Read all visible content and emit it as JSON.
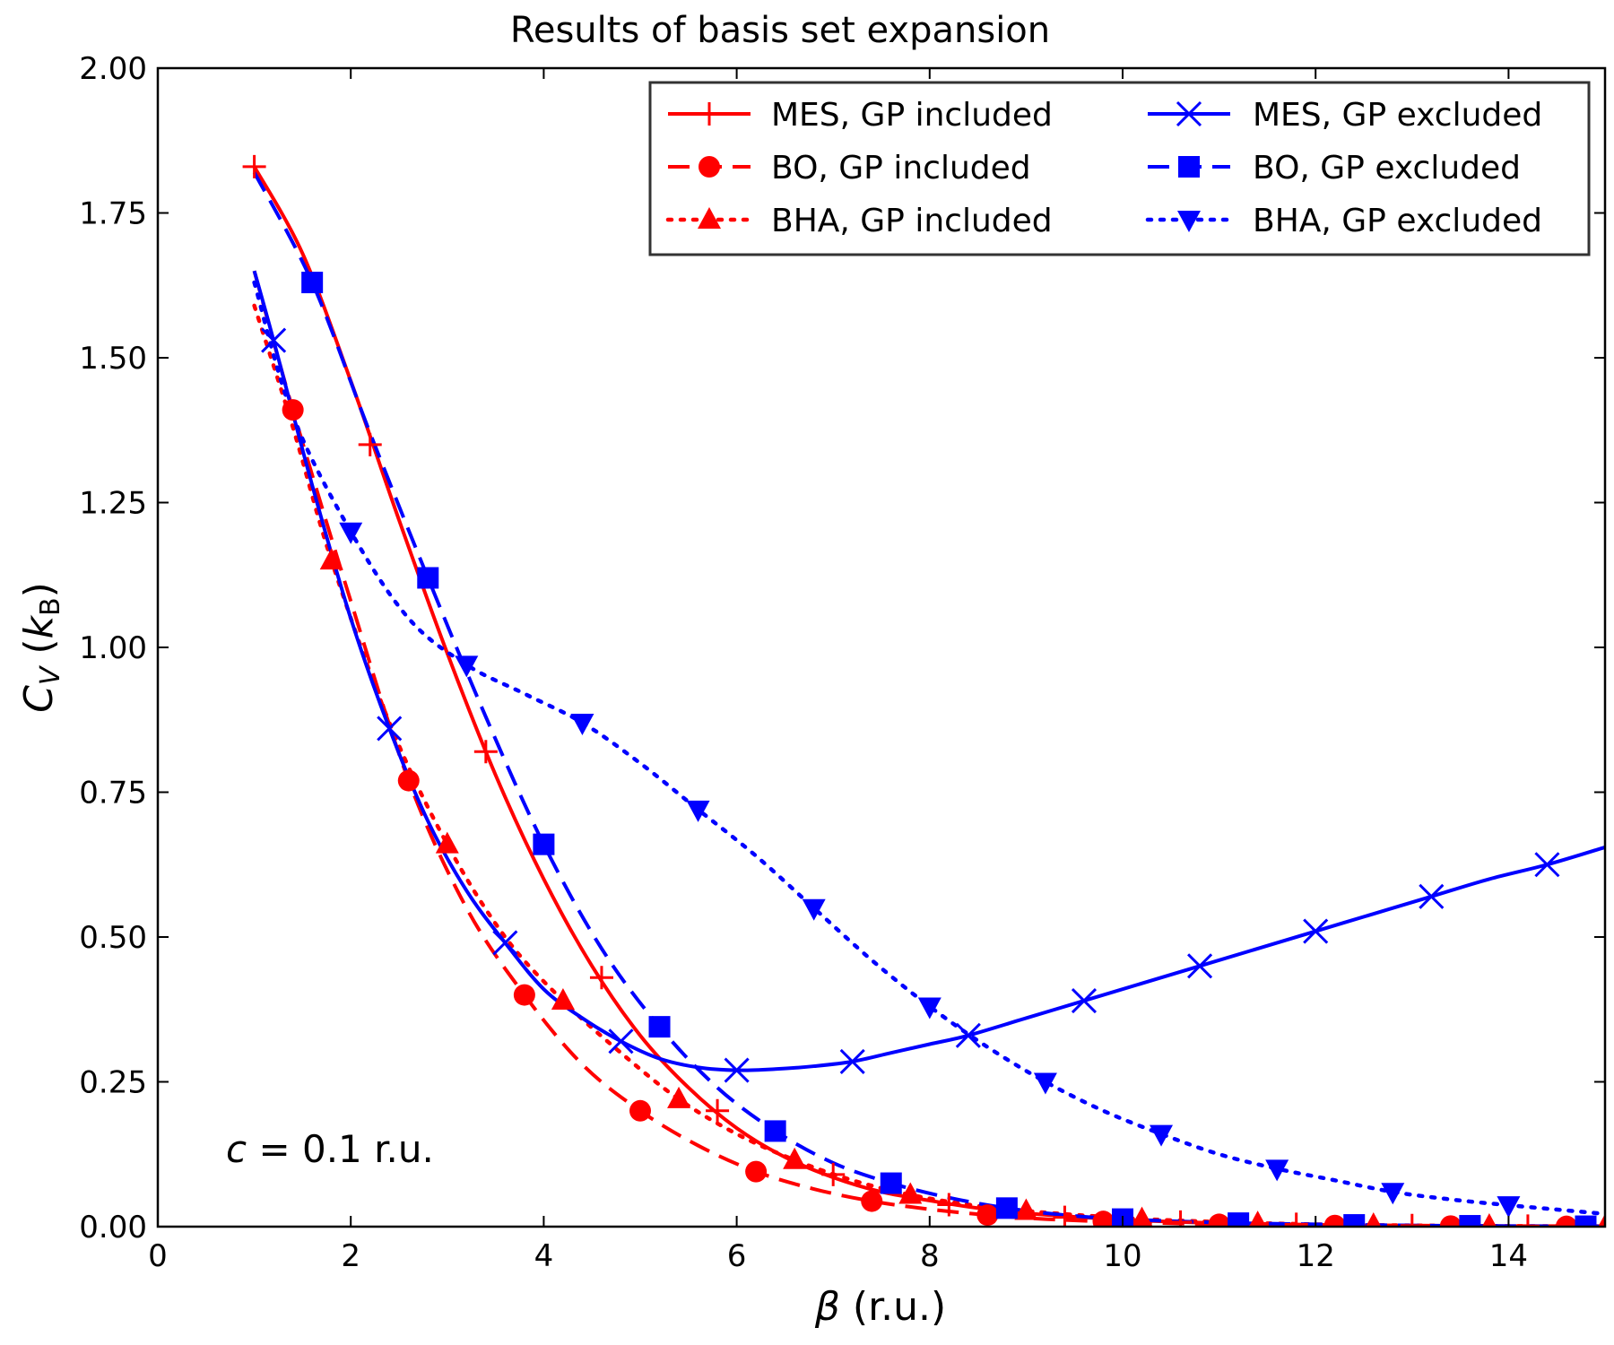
{
  "chart_data": {
    "type": "line",
    "title": "Results of basis set expansion",
    "xlabel": {
      "symbol": "β",
      "unit": " (r.u.)"
    },
    "ylabel": {
      "symbol": "C",
      "sub": "V",
      "open": " (",
      "k": "k",
      "ksub": "B",
      "close": ")"
    },
    "xlim": [
      0,
      15
    ],
    "ylim": [
      0,
      2
    ],
    "xticks": [
      0,
      2,
      4,
      6,
      8,
      10,
      12,
      14
    ],
    "yticks": [
      0,
      0.25,
      0.5,
      0.75,
      1.0,
      1.25,
      1.5,
      1.75,
      2.0
    ],
    "grid": false,
    "legend_position": "top-right",
    "annotation": {
      "c": "c",
      "rest": " = 0.1 r.u."
    },
    "colors": {
      "red": "#ff0000",
      "blue": "#0000ff"
    },
    "series": [
      {
        "name": "MES, GP included",
        "color": "#ff0000",
        "linestyle": "solid",
        "marker": "plus",
        "x": [
          1.0,
          1.5,
          2.0,
          2.5,
          3.0,
          3.5,
          4.0,
          4.5,
          5.0,
          5.5,
          6.0,
          6.5,
          7.0,
          7.5,
          8.0,
          8.5,
          9.0,
          10.0,
          11.0,
          12.0,
          13.0,
          14.0,
          15.0
        ],
        "y": [
          1.83,
          1.68,
          1.46,
          1.22,
          0.99,
          0.78,
          0.6,
          0.45,
          0.33,
          0.24,
          0.17,
          0.12,
          0.085,
          0.06,
          0.045,
          0.032,
          0.023,
          0.012,
          0.006,
          0.003,
          0.002,
          0.001,
          0.001
        ],
        "marker_x": [
          1.0,
          2.2,
          3.4,
          4.6,
          5.8,
          7.0,
          8.2,
          9.4,
          10.6,
          11.8,
          13.0,
          14.2
        ],
        "marker_y": [
          1.83,
          1.35,
          0.82,
          0.43,
          0.2,
          0.09,
          0.038,
          0.016,
          0.008,
          0.004,
          0.002,
          0.001
        ]
      },
      {
        "name": "BO, GP included",
        "color": "#ff0000",
        "linestyle": "dashed",
        "marker": "circle",
        "x": [
          1.0,
          1.4,
          2.0,
          2.6,
          3.2,
          3.8,
          4.4,
          5.0,
          5.6,
          6.2,
          6.8,
          7.4,
          8.0,
          8.6,
          9.2,
          10.0,
          11.0,
          12.0,
          13.0,
          14.0,
          15.0
        ],
        "y": [
          1.65,
          1.41,
          1.08,
          0.77,
          0.55,
          0.4,
          0.28,
          0.2,
          0.14,
          0.095,
          0.065,
          0.044,
          0.03,
          0.02,
          0.013,
          0.008,
          0.004,
          0.002,
          0.001,
          0.0005,
          0.0003
        ],
        "marker_x": [
          1.4,
          2.6,
          3.8,
          5.0,
          6.2,
          7.4,
          8.6,
          9.8,
          11.0,
          12.2,
          13.4,
          14.6
        ],
        "marker_y": [
          1.41,
          0.77,
          0.4,
          0.2,
          0.095,
          0.044,
          0.02,
          0.009,
          0.004,
          0.002,
          0.001,
          0.0005
        ]
      },
      {
        "name": "BHA, GP included",
        "color": "#ff0000",
        "linestyle": "dotted",
        "marker": "triangle-up",
        "x": [
          1.0,
          1.4,
          1.8,
          2.4,
          3.0,
          3.6,
          4.2,
          4.8,
          5.4,
          6.0,
          6.6,
          7.2,
          7.8,
          8.4,
          9.0,
          10.0,
          11.0,
          12.0,
          13.0,
          14.0,
          15.0
        ],
        "y": [
          1.59,
          1.38,
          1.15,
          0.87,
          0.66,
          0.5,
          0.39,
          0.3,
          0.22,
          0.16,
          0.115,
          0.08,
          0.055,
          0.038,
          0.027,
          0.015,
          0.008,
          0.004,
          0.002,
          0.001,
          0.0005
        ],
        "marker_x": [
          1.8,
          3.0,
          4.2,
          5.4,
          6.6,
          7.8,
          9.0,
          10.2,
          11.4,
          12.6,
          13.8,
          15.0
        ],
        "marker_y": [
          1.15,
          0.66,
          0.39,
          0.22,
          0.115,
          0.055,
          0.027,
          0.013,
          0.006,
          0.003,
          0.0015,
          0.0005
        ]
      },
      {
        "name": "MES, GP excluded",
        "color": "#0000ff",
        "linestyle": "solid",
        "marker": "x",
        "x": [
          1.0,
          1.2,
          1.6,
          2.0,
          2.4,
          2.8,
          3.2,
          3.6,
          4.0,
          4.4,
          4.8,
          5.2,
          5.6,
          6.0,
          6.4,
          6.8,
          7.2,
          7.6,
          8.0,
          8.4,
          9.0,
          9.6,
          10.2,
          10.8,
          11.4,
          12.0,
          12.6,
          13.2,
          13.8,
          14.4,
          15.0
        ],
        "y": [
          1.65,
          1.53,
          1.28,
          1.05,
          0.86,
          0.7,
          0.58,
          0.49,
          0.41,
          0.36,
          0.32,
          0.29,
          0.275,
          0.27,
          0.272,
          0.277,
          0.285,
          0.3,
          0.315,
          0.33,
          0.36,
          0.39,
          0.42,
          0.45,
          0.48,
          0.51,
          0.54,
          0.57,
          0.6,
          0.625,
          0.655
        ],
        "marker_x": [
          1.2,
          2.4,
          3.6,
          4.8,
          6.0,
          7.2,
          8.4,
          9.6,
          10.8,
          12.0,
          13.2,
          14.4
        ],
        "marker_y": [
          1.53,
          0.86,
          0.49,
          0.32,
          0.27,
          0.285,
          0.33,
          0.39,
          0.45,
          0.51,
          0.57,
          0.625
        ]
      },
      {
        "name": "BO, GP excluded",
        "color": "#0000ff",
        "linestyle": "dashed",
        "marker": "square",
        "x": [
          1.0,
          1.6,
          2.2,
          2.8,
          3.4,
          4.0,
          4.6,
          5.2,
          5.8,
          6.4,
          7.0,
          7.6,
          8.2,
          8.8,
          9.4,
          10.0,
          11.0,
          12.0,
          13.0,
          14.0,
          15.0
        ],
        "y": [
          1.82,
          1.63,
          1.37,
          1.12,
          0.88,
          0.66,
          0.48,
          0.345,
          0.24,
          0.165,
          0.11,
          0.075,
          0.05,
          0.032,
          0.02,
          0.013,
          0.007,
          0.004,
          0.002,
          0.001,
          0.0006
        ],
        "marker_x": [
          1.6,
          2.8,
          4.0,
          5.2,
          6.4,
          7.6,
          8.8,
          10.0,
          11.2,
          12.4,
          13.6,
          14.8
        ],
        "marker_y": [
          1.63,
          1.12,
          0.66,
          0.345,
          0.165,
          0.075,
          0.032,
          0.013,
          0.006,
          0.003,
          0.0015,
          0.0007
        ]
      },
      {
        "name": "BHA, GP excluded",
        "color": "#0000ff",
        "linestyle": "dotted",
        "marker": "triangle-down",
        "x": [
          1.0,
          1.4,
          2.0,
          2.6,
          3.2,
          3.8,
          4.4,
          5.0,
          5.6,
          6.2,
          6.8,
          7.4,
          8.0,
          8.6,
          9.2,
          9.8,
          10.4,
          11.0,
          11.6,
          12.2,
          12.8,
          13.4,
          14.0,
          14.6,
          15.0
        ],
        "y": [
          1.63,
          1.4,
          1.2,
          1.05,
          0.97,
          0.92,
          0.87,
          0.8,
          0.72,
          0.64,
          0.55,
          0.46,
          0.38,
          0.31,
          0.25,
          0.2,
          0.16,
          0.125,
          0.1,
          0.08,
          0.06,
          0.047,
          0.037,
          0.028,
          0.022
        ],
        "marker_x": [
          2.0,
          3.2,
          4.4,
          5.6,
          6.8,
          8.0,
          9.2,
          10.4,
          11.6,
          12.8,
          14.0
        ],
        "marker_y": [
          1.2,
          0.97,
          0.87,
          0.72,
          0.55,
          0.38,
          0.25,
          0.16,
          0.1,
          0.06,
          0.037
        ]
      }
    ]
  }
}
